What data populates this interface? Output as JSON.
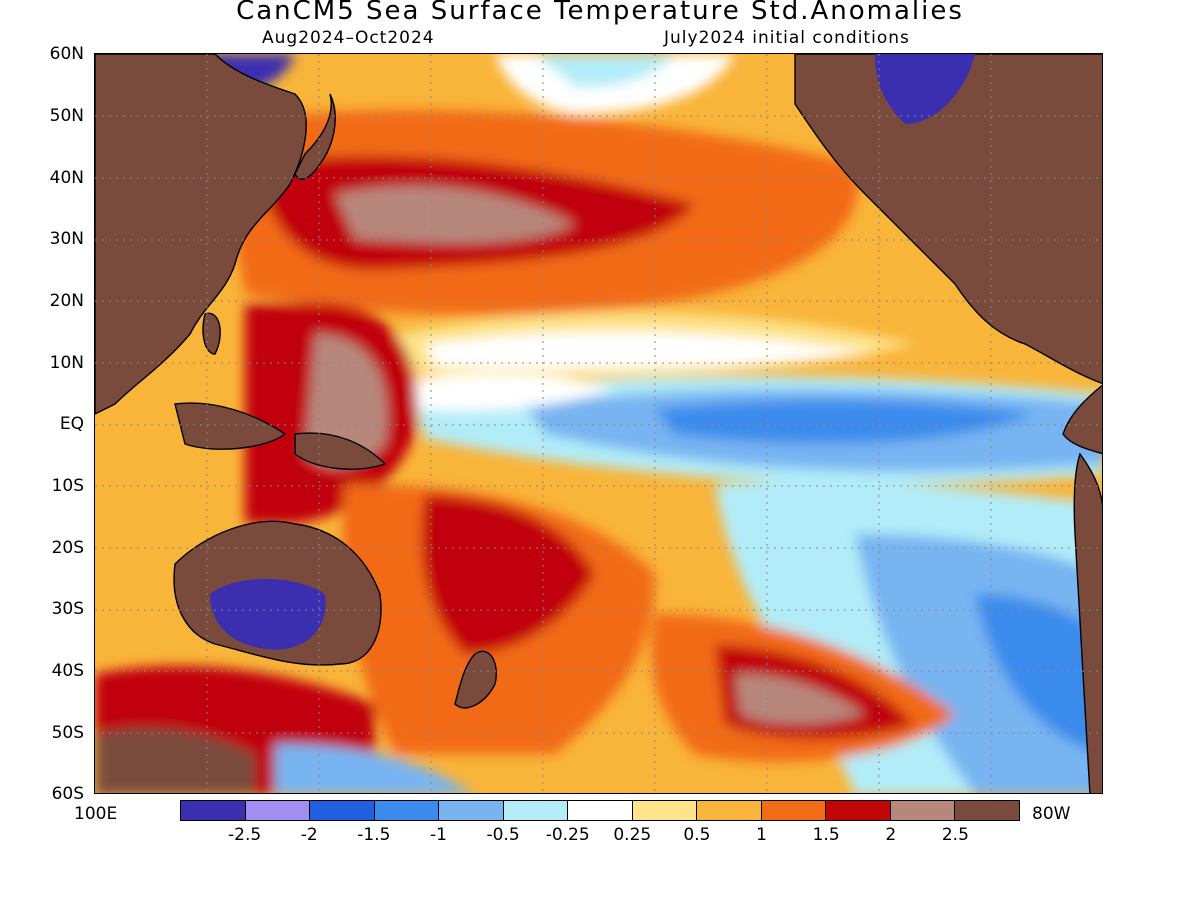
{
  "title": "CanCM5 Sea Surface Temperature Std.Anomalies",
  "subtitle_left": "Aug2024–Oct2024",
  "subtitle_right": "July2024 initial conditions",
  "lat_labels": [
    "60N",
    "50N",
    "40N",
    "30N",
    "20N",
    "10N",
    "EQ",
    "10S",
    "20S",
    "30S",
    "40S",
    "50S",
    "60S"
  ],
  "lon_labels": {
    "left": "100E",
    "right": "80W"
  },
  "colorbar": {
    "colors": [
      "#3b2fb0",
      "#a18ef0",
      "#1f5fe0",
      "#3a8bec",
      "#78b4f2",
      "#b2ecf8",
      "#ffffff",
      "#fde38a",
      "#f9b43a",
      "#f26b17",
      "#c1060a",
      "#b8877c",
      "#7a4b3d"
    ],
    "labels": [
      "-2.5",
      "-2",
      "-1.5",
      "-1",
      "-0.5",
      "-0.25",
      "0.25",
      "0.5",
      "1",
      "1.5",
      "2",
      "2.5"
    ]
  },
  "land_color": "#7a4b3d"
}
